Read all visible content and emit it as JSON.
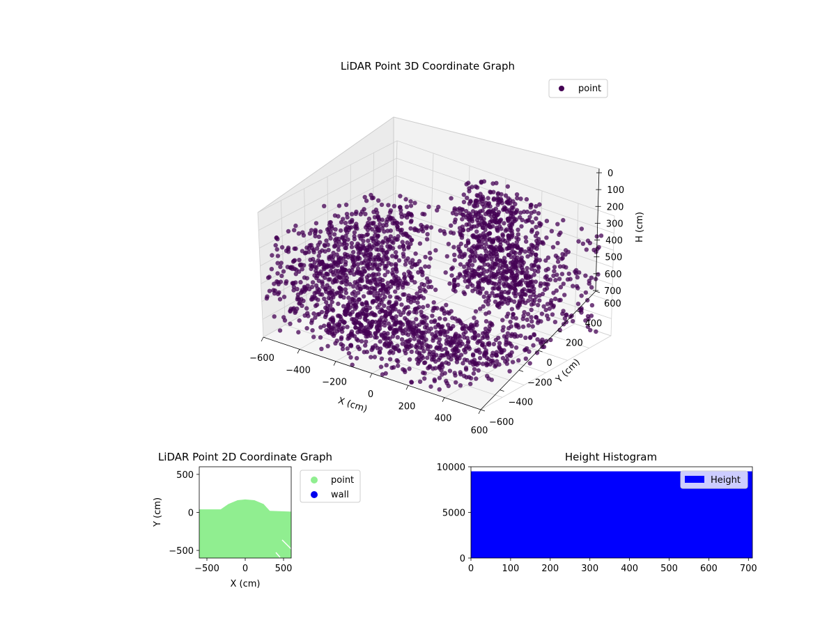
{
  "colors": {
    "point3d": "#440154",
    "point2d": "#90ee90",
    "wall": "#0000ee",
    "hist": "#0000ff"
  },
  "chart_data": [
    {
      "type": "scatter",
      "projection": "3d",
      "title": "LiDAR Point 3D Coordinate Graph",
      "xlabel": "X (cm)",
      "ylabel": "Y (cm)",
      "zlabel": "H (cm)",
      "xlim": [
        -600,
        600
      ],
      "ylim": [
        -600,
        600
      ],
      "zlim": [
        0,
        700
      ],
      "z_inverted": true,
      "xticks": [
        "−600",
        "−400",
        "−200",
        "0",
        "200",
        "400",
        "600"
      ],
      "yticks": [
        "−600",
        "−400",
        "−200",
        "0",
        "200",
        "400",
        "600"
      ],
      "zticks": [
        "0",
        "100",
        "200",
        "300",
        "400",
        "500",
        "600",
        "700"
      ],
      "grid": true,
      "legend": {
        "position": "top-right",
        "entries": [
          "point"
        ]
      },
      "series": [
        {
          "name": "point",
          "color": "#440154",
          "clusters": [
            {
              "x": [
                -600,
                -200
              ],
              "y": [
                -600,
                400
              ],
              "z": [
                150,
                650
              ],
              "n": 900
            },
            {
              "x": [
                -150,
                250
              ],
              "y": [
                300,
                600
              ],
              "z": [
                30,
                600
              ],
              "n": 700
            },
            {
              "x": [
                -300,
                500
              ],
              "y": [
                -600,
                0
              ],
              "z": [
                450,
                700
              ],
              "n": 700
            },
            {
              "x": [
                300,
                600
              ],
              "y": [
                -200,
                600
              ],
              "z": [
                100,
                650
              ],
              "n": 260
            }
          ]
        }
      ]
    },
    {
      "type": "scatter",
      "title": "LiDAR Point 2D Coordinate Graph",
      "xlabel": "X (cm)",
      "ylabel": "Y (cm)",
      "xlim": [
        -600,
        600
      ],
      "ylim": [
        -600,
        600
      ],
      "xticks": [
        "−500",
        "0",
        "500"
      ],
      "yticks": [
        "−500",
        "0",
        "500"
      ],
      "legend": {
        "position": "outside-right",
        "entries": [
          "point",
          "wall"
        ]
      },
      "series": [
        {
          "name": "point",
          "color": "#90ee90",
          "outline": [
            [
              -600,
              -600
            ],
            [
              -600,
              40
            ],
            [
              -320,
              40
            ],
            [
              -220,
              110
            ],
            [
              -100,
              160
            ],
            [
              0,
              170
            ],
            [
              120,
              160
            ],
            [
              240,
              110
            ],
            [
              320,
              20
            ],
            [
              600,
              10
            ],
            [
              600,
              -600
            ]
          ]
        },
        {
          "name": "wall",
          "color": "#0000ee",
          "outline": []
        }
      ]
    },
    {
      "type": "bar",
      "title": "Height Histogram",
      "xlim": [
        0,
        710
      ],
      "ylim": [
        0,
        10000
      ],
      "xticks": [
        "0",
        "100",
        "200",
        "300",
        "400",
        "500",
        "600",
        "700"
      ],
      "yticks": [
        "0",
        "5000",
        "10000"
      ],
      "legend": {
        "position": "top-right",
        "entries": [
          "Height"
        ]
      },
      "series": [
        {
          "name": "Height",
          "color": "#0000ff",
          "bins": [
            0,
            710
          ],
          "values": [
            9500
          ]
        }
      ]
    }
  ]
}
